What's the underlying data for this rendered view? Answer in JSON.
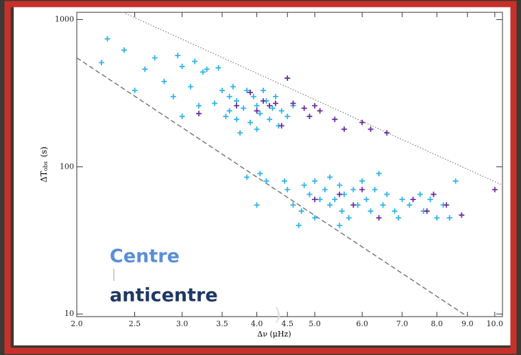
{
  "chart_data": {
    "type": "scatter",
    "xlabel": "Δν (μHz)",
    "ylabel": "ΔT",
    "ylabel_sub": "obs",
    "ylabel_unit": "(s)",
    "xscale": "log",
    "yscale": "log",
    "xlim": [
      2,
      10.3
    ],
    "ylim": [
      9.6,
      1120
    ],
    "xticks": [
      {
        "value": 2,
        "label": "2.0"
      },
      {
        "value": 2.5,
        "label": "2.5"
      },
      {
        "value": 3,
        "label": "3.0"
      },
      {
        "value": 3.5,
        "label": "3.5"
      },
      {
        "value": 4,
        "label": "4.0"
      },
      {
        "value": 4.5,
        "label": "4.5"
      },
      {
        "value": 5,
        "label": "5.0"
      },
      {
        "value": 6,
        "label": "6.0"
      },
      {
        "value": 7,
        "label": "7.0"
      },
      {
        "value": 8,
        "label": "8.0"
      },
      {
        "value": 9,
        "label": "9.0"
      },
      {
        "value": 10,
        "label": "10.0"
      }
    ],
    "yticks": [
      10,
      100,
      1000
    ],
    "reference_lines": [
      {
        "style": "dotted",
        "x": [
          2.39,
          10.3
        ],
        "y": [
          1120,
          75
        ]
      },
      {
        "style": "dashed",
        "x": [
          2,
          9
        ],
        "y": [
          550,
          9.6
        ]
      }
    ],
    "series": [
      {
        "name": "Centre",
        "color": "#2fb4ee",
        "x": [
          2.25,
          2.2,
          2.4,
          2.6,
          2.7,
          2.5,
          2.8,
          2.9,
          2.95,
          3.0,
          3.1,
          3.15,
          3.25,
          3.3,
          3.45,
          3.0,
          3.2,
          3.4,
          3.5,
          3.6,
          3.6,
          3.7,
          3.7,
          3.8,
          3.85,
          3.9,
          3.95,
          4.0,
          4.05,
          4.1,
          4.15,
          4.2,
          4.25,
          4.3,
          4.35,
          4.4,
          4.5,
          4.6,
          3.75,
          4.0,
          3.55,
          3.65,
          3.85,
          4.05,
          4.0,
          4.15,
          4.45,
          4.5,
          4.6,
          4.75,
          4.8,
          4.9,
          5.0,
          5.0,
          5.1,
          5.2,
          5.3,
          5.3,
          5.4,
          5.5,
          5.55,
          5.6,
          5.7,
          5.8,
          5.9,
          6.0,
          6.1,
          6.2,
          6.3,
          6.4,
          6.5,
          6.6,
          6.8,
          7.0,
          7.2,
          7.5,
          7.6,
          7.8,
          8.0,
          8.2,
          8.4,
          8.6,
          4.7,
          5.5,
          6.9
        ],
        "y": [
          740,
          510,
          620,
          460,
          550,
          330,
          380,
          300,
          570,
          480,
          350,
          520,
          440,
          460,
          470,
          220,
          260,
          270,
          330,
          300,
          240,
          280,
          210,
          250,
          330,
          200,
          300,
          260,
          230,
          330,
          280,
          210,
          250,
          300,
          190,
          240,
          220,
          260,
          170,
          180,
          220,
          350,
          85,
          90,
          55,
          80,
          80,
          70,
          55,
          50,
          75,
          65,
          45,
          80,
          60,
          70,
          55,
          85,
          60,
          75,
          50,
          65,
          45,
          70,
          55,
          80,
          60,
          50,
          70,
          90,
          55,
          65,
          50,
          60,
          55,
          65,
          50,
          60,
          45,
          55,
          45,
          80,
          40,
          40,
          45
        ]
      },
      {
        "name": "anticentre",
        "color": "#6b2d9e",
        "x": [
          4.5,
          3.7,
          3.9,
          4.0,
          4.1,
          4.2,
          4.3,
          4.4,
          4.6,
          4.8,
          4.9,
          5.0,
          5.1,
          5.4,
          5.6,
          6.0,
          6.2,
          6.6,
          3.2,
          5.0,
          5.5,
          5.8,
          6.0,
          6.4,
          7.3,
          7.7,
          7.9,
          8.3,
          8.8,
          10.0
        ],
        "y": [
          400,
          260,
          320,
          240,
          280,
          260,
          270,
          190,
          270,
          250,
          220,
          260,
          240,
          210,
          180,
          200,
          180,
          170,
          230,
          60,
          65,
          55,
          70,
          45,
          60,
          50,
          65,
          55,
          47,
          70
        ]
      }
    ],
    "fragment": ")"
  }
}
